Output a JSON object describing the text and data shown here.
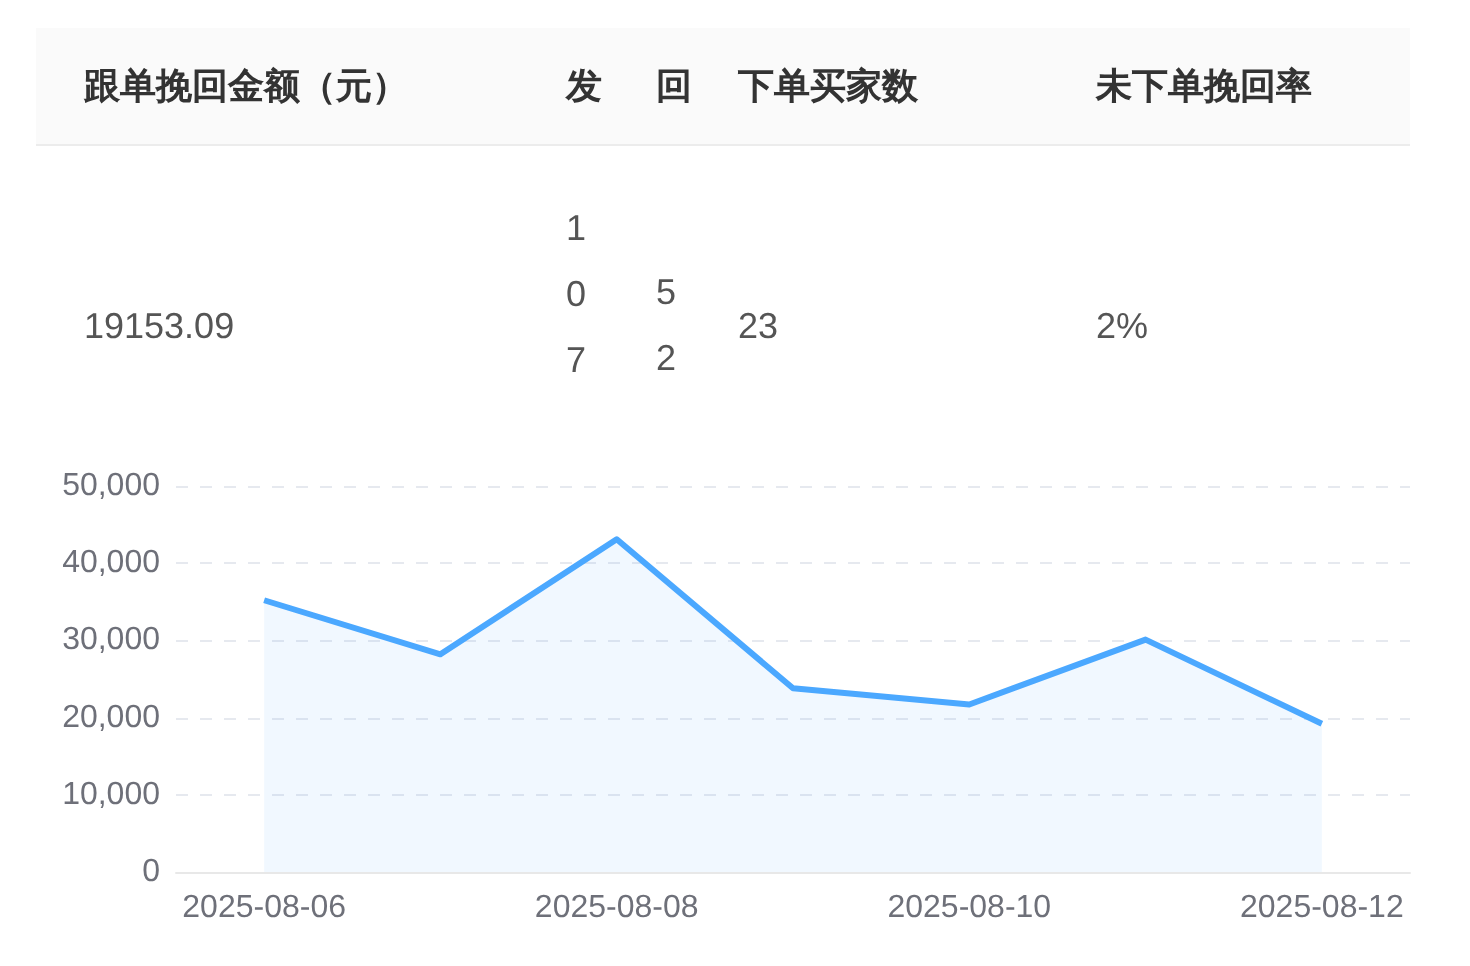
{
  "chart_data": [
    {
      "type": "other",
      "categories": [
        "跟单挽回金额（元）",
        "发",
        "回",
        "下单买家数",
        "未下单挽回率"
      ],
      "value_labels": [
        "19153.09",
        "107",
        "52",
        "23",
        "2%"
      ]
    },
    {
      "type": "area",
      "categories": [
        "2025-08-06",
        null,
        "2025-08-08",
        null,
        "2025-08-10",
        null,
        "2025-08-12"
      ],
      "series": [
        {
          "color": "#4ba8ff",
          "values": [
            35200,
            28200,
            43100,
            23800,
            21700,
            30100,
            19200
          ]
        }
      ],
      "ylim": [
        0,
        50000
      ],
      "yticks": [
        0,
        {
          "value": 10000,
          "label": "10,000"
        },
        {
          "value": 20000,
          "label": "20,000"
        },
        {
          "value": 30000,
          "label": "30,000"
        },
        {
          "value": 40000,
          "label": "40,000"
        },
        {
          "value": 50000,
          "label": "50,000"
        }
      ],
      "grid": "y",
      "marker": "none"
    }
  ]
}
